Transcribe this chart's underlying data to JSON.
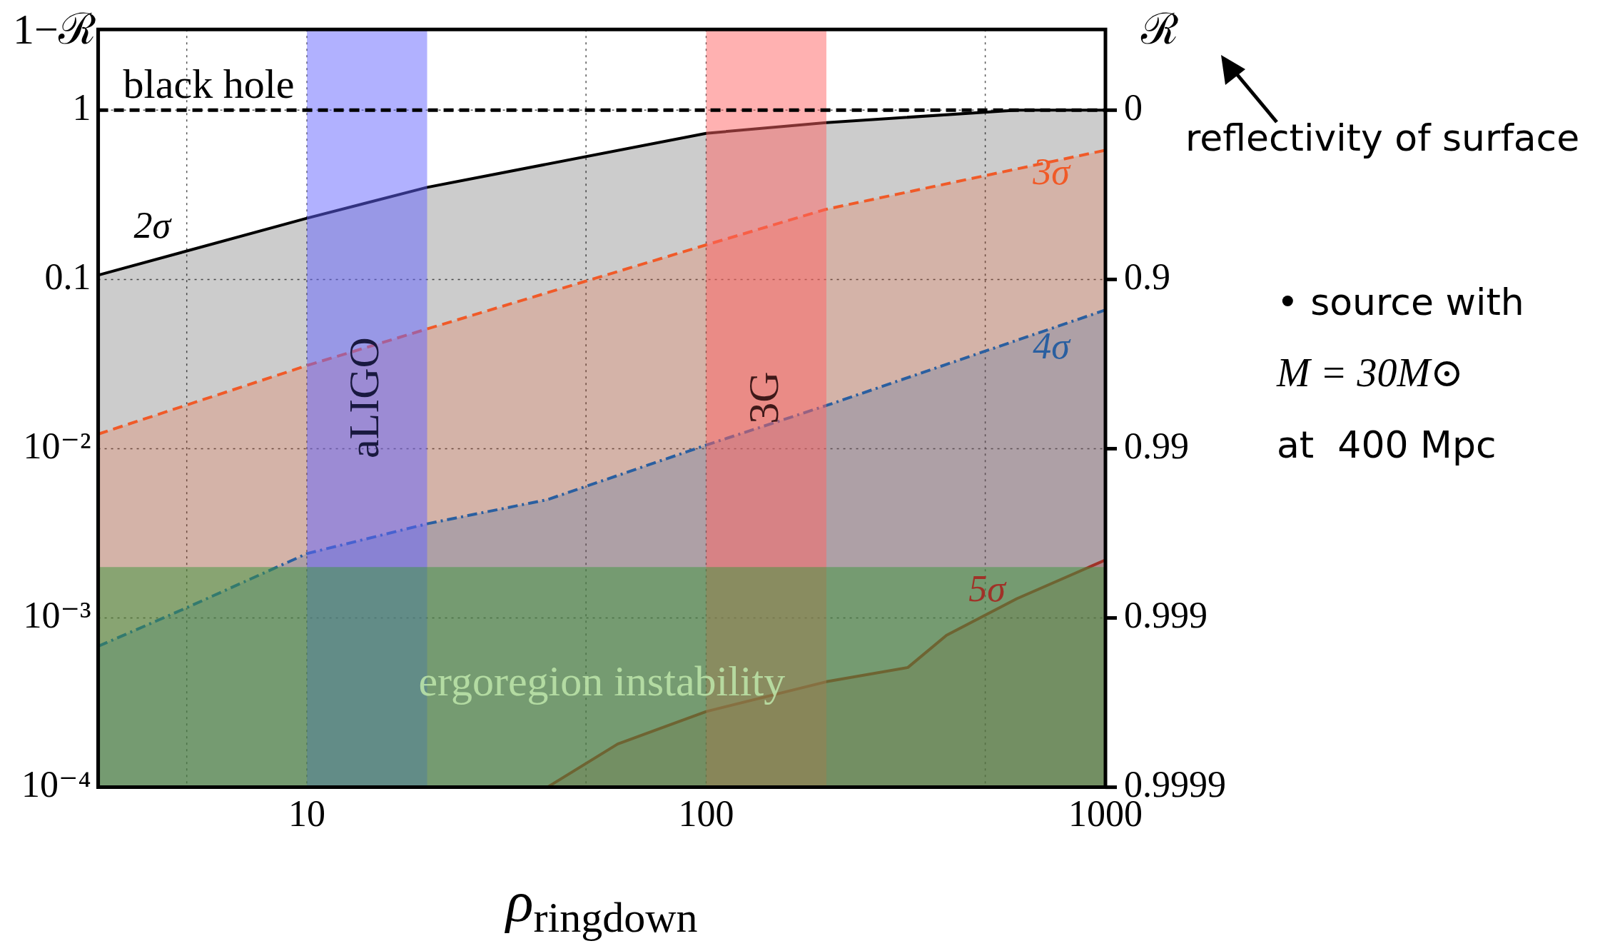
{
  "chart_data": {
    "type": "area",
    "xlabel": "ρ$_{ringdown}$",
    "ylabel": "1−ℛ",
    "y2label": "ℛ",
    "log": "xy",
    "grid": true,
    "legend": false,
    "xlim": [
      3,
      1000
    ],
    "xticks": [
      {
        "value": 5,
        "label": null
      },
      10,
      {
        "value": 50,
        "label": null
      },
      100,
      {
        "value": 500,
        "label": null
      },
      1000
    ],
    "ylim": [
      0.0001,
      3
    ],
    "yticks": [
      {
        "value": 0.0001,
        "label": "10⁻⁴"
      },
      {
        "value": 0.001,
        "label": "10⁻³"
      },
      {
        "value": 0.01,
        "label": "10⁻²"
      },
      0.1,
      1
    ],
    "series": [
      {
        "name": "2σ",
        "color": "#000000",
        "line_style": "solid",
        "x": [
          3,
          10,
          20,
          100,
          200,
          600,
          1000
        ],
        "values": [
          0.106,
          0.23,
          0.35,
          0.73,
          0.845,
          1,
          1
        ]
      },
      {
        "name": "3σ",
        "color": "#f05a28",
        "line_style": "dashed",
        "x": [
          3,
          10,
          20,
          100,
          200,
          1000
        ],
        "values": [
          0.0122,
          0.031,
          0.051,
          0.16,
          0.26,
          0.58
        ]
      },
      {
        "name": "4σ",
        "color": "#2a5fa0",
        "line_style": "dashdot",
        "x": [
          3,
          5,
          10,
          20,
          40,
          100,
          200,
          1000
        ],
        "values": [
          0.00068,
          0.00115,
          0.0024,
          0.0036,
          0.005,
          0.0105,
          0.018,
          0.066
        ]
      },
      {
        "name": "5σ",
        "color": "#a03228",
        "line_style": "solid",
        "x": [
          40,
          60,
          100,
          200,
          320,
          400,
          600,
          1000
        ],
        "values": [
          0.0001,
          0.00018,
          0.00028,
          0.00042,
          0.00051,
          0.00079,
          0.0013,
          0.0022
        ]
      }
    ],
    "ref_lines": [
      {
        "axis": "y",
        "value": 1,
        "label": "black hole",
        "color": "#000000",
        "line_style": "dashed"
      }
    ],
    "bands": [
      {
        "axis": "x",
        "from": 10,
        "to": 20,
        "label": "aLIGO",
        "color": "#6464ff"
      },
      {
        "axis": "x",
        "from": 100,
        "to": 200,
        "label": "3G",
        "color": "#ff6464"
      },
      {
        "axis": "y",
        "from": 0.0001,
        "to": 0.002,
        "label": "ergoregion instability",
        "color": "#3c963c"
      }
    ],
    "annotations": [
      "reflectivity of surface",
      "• source with",
      "M = 30M⊙",
      "at  400 Mpc",
      "0",
      "0.9",
      "0.99",
      "0.999",
      "0.9999"
    ]
  }
}
